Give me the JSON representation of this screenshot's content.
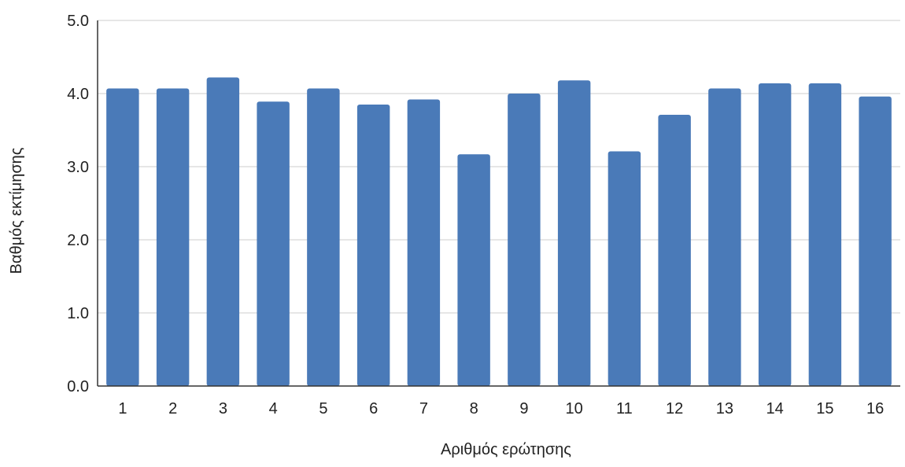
{
  "chart_data": {
    "type": "bar",
    "title": "",
    "xlabel": "Αριθμός ερώτησης",
    "ylabel": "Βαθμός εκτίμησης",
    "categories": [
      "1",
      "2",
      "3",
      "4",
      "5",
      "6",
      "7",
      "8",
      "9",
      "10",
      "11",
      "12",
      "13",
      "14",
      "15",
      "16"
    ],
    "values": [
      4.07,
      4.07,
      4.22,
      3.89,
      4.07,
      3.85,
      3.92,
      3.17,
      4.0,
      4.18,
      3.21,
      3.71,
      4.07,
      4.14,
      4.14,
      3.96
    ],
    "ylim": [
      0,
      5
    ],
    "yticks": [
      "0.0",
      "1.0",
      "2.0",
      "3.0",
      "4.0",
      "5.0"
    ],
    "grid": true,
    "legend": "none",
    "bar_color": "#4a7ab8",
    "grid_color": "#cccccc",
    "axis_color": "#333333"
  }
}
